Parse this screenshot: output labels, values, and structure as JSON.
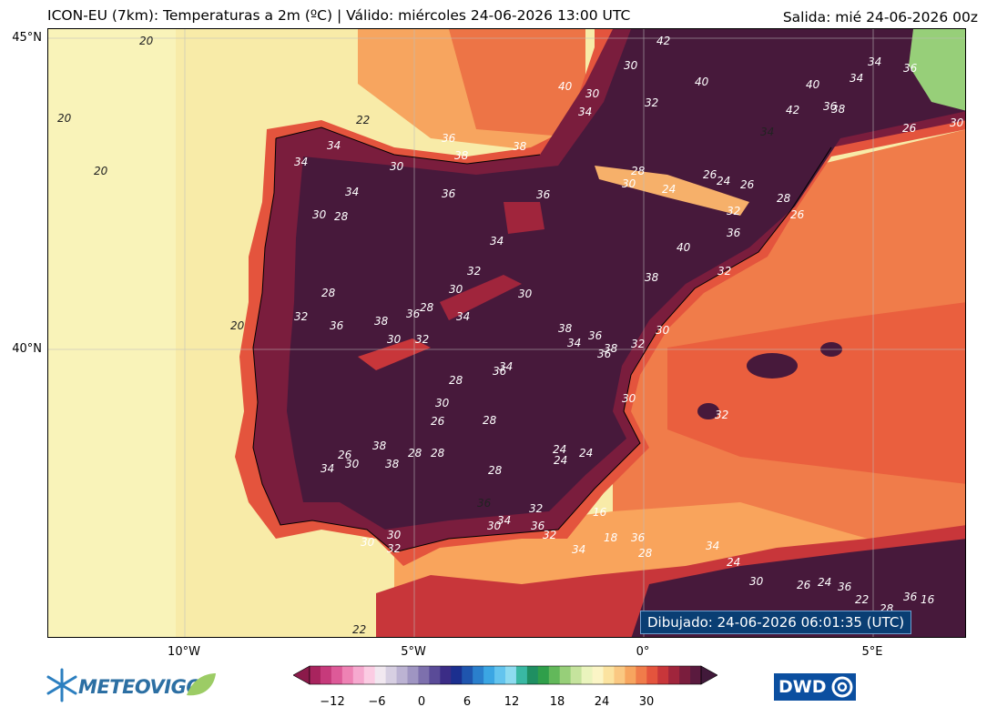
{
  "title_left": "ICON-EU (7km): Temperaturas a 2m (ºC) | Válido: miércoles 24-06-2026 13:00 UTC",
  "title_right": "Salida: mié 24-06-2026 00z",
  "lat_labels": [
    "45°N",
    "40°N"
  ],
  "lon_labels": [
    "10°W",
    "5°W",
    "0°",
    "5°E"
  ],
  "drawn_stamp": "Dibujado: 24-06-2026 06:01:35 (UTC)",
  "colorbar": {
    "ticks": [
      "−12",
      "−6",
      "0",
      "6",
      "12",
      "18",
      "24",
      "30"
    ],
    "colors": [
      "#8b1a4a",
      "#a8245e",
      "#c63a7b",
      "#dd5a98",
      "#ee82b4",
      "#f6a9cf",
      "#fbcce3",
      "#f1e8f0",
      "#d7cfe2",
      "#bcb3d3",
      "#9f95c2",
      "#7d70ad",
      "#5a4b98",
      "#3b2c86",
      "#1b2f8f",
      "#1f55ae",
      "#2a7fcc",
      "#3ba6e3",
      "#63c4ee",
      "#8ddbf0",
      "#39b8a3",
      "#1f8f62",
      "#2f9f4a",
      "#62b85a",
      "#97cf79",
      "#c5e39d",
      "#eaf4bd",
      "#fbf5c6",
      "#fbe3a0",
      "#fac882",
      "#f7a55f",
      "#f07c4a",
      "#e4543d",
      "#c8363a",
      "#a0253c",
      "#7a1d3d",
      "#5a1a3e",
      "#41193a"
    ]
  },
  "logos": {
    "left_text": "METEOVIGO",
    "right_text": "DWD"
  },
  "contour_labels": [
    "20",
    "20",
    "20",
    "20",
    "22",
    "22",
    "36",
    "38",
    "38",
    "34",
    "34",
    "30",
    "34",
    "30",
    "28",
    "36",
    "30",
    "32",
    "30",
    "34",
    "40",
    "42",
    "42",
    "40",
    "34",
    "36",
    "34",
    "38",
    "36",
    "26",
    "30",
    "40",
    "34",
    "28",
    "24",
    "26",
    "24",
    "26",
    "28",
    "30",
    "32",
    "36",
    "26",
    "40",
    "38",
    "32",
    "36",
    "34",
    "32",
    "30",
    "28",
    "34",
    "30",
    "28",
    "32",
    "36",
    "38",
    "36",
    "30",
    "32",
    "28",
    "30",
    "36",
    "34",
    "38",
    "36",
    "38",
    "34",
    "32",
    "30",
    "36",
    "30",
    "32",
    "28",
    "26",
    "28",
    "24",
    "24",
    "24",
    "28",
    "36",
    "32",
    "34",
    "36",
    "32",
    "30",
    "30",
    "30",
    "32",
    "38",
    "28",
    "26",
    "34",
    "30",
    "38",
    "16",
    "18",
    "28",
    "34",
    "36",
    "34",
    "24",
    "30",
    "26",
    "24",
    "36",
    "22",
    "28",
    "36",
    "16"
  ]
}
